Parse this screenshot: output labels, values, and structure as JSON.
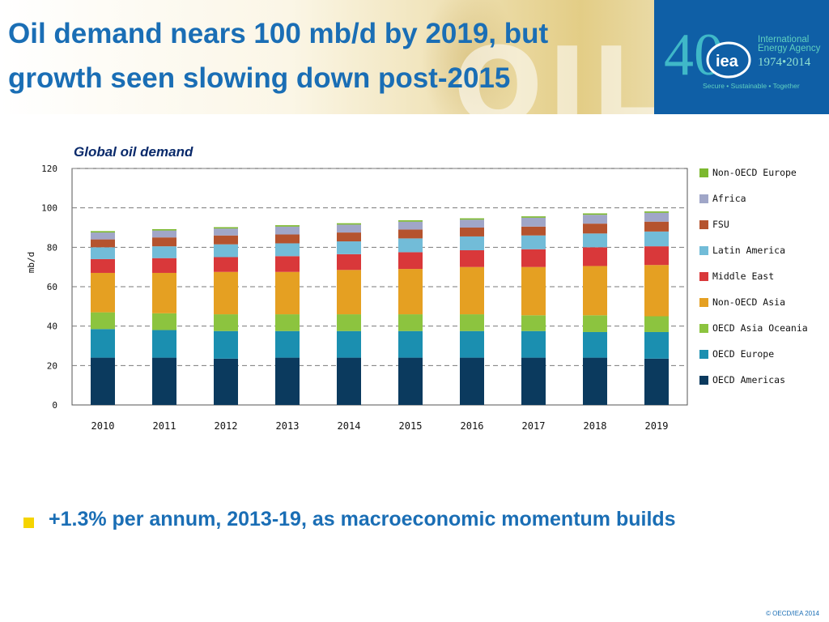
{
  "slide": {
    "title_line1": "Oil demand nears 100 mb/d by 2019, but",
    "title_line2": "growth seen slowing down post-2015",
    "bullet": "+1.3% per annum, 2013-19, as macroeconomic momentum builds",
    "copyright": "© OECD/IEA 2014",
    "bullet_color": "#f5d400",
    "accent_color": "#1a6eb5"
  },
  "logo": {
    "org_line1": "International",
    "org_line2": "Energy Agency",
    "years": "1974•2014",
    "tagline": "Secure • Sustainable • Together",
    "number": "40",
    "abbr": "iea"
  },
  "background_word": "OIL",
  "chart_data": {
    "type": "bar",
    "stacked": true,
    "title": "Global oil demand",
    "ylabel": "mb/d",
    "xlabel": "",
    "ylim": [
      0,
      120
    ],
    "yticks": [
      0,
      20,
      40,
      60,
      80,
      100,
      120
    ],
    "grid": true,
    "legend_position": "right",
    "categories": [
      "2010",
      "2011",
      "2012",
      "2013",
      "2014",
      "2015",
      "2016",
      "2017",
      "2018",
      "2019"
    ],
    "series": [
      {
        "name": "OECD Americas",
        "color": "#0b3a5e",
        "values": [
          24.0,
          24.0,
          23.5,
          24.0,
          24.0,
          24.0,
          24.0,
          24.0,
          24.0,
          23.5
        ]
      },
      {
        "name": "OECD Europe",
        "color": "#1b8fb0",
        "values": [
          14.5,
          14.0,
          14.0,
          13.5,
          13.5,
          13.5,
          13.5,
          13.5,
          13.0,
          13.5
        ]
      },
      {
        "name": "OECD Asia Oceania",
        "color": "#8cc43f",
        "values": [
          8.5,
          8.5,
          8.5,
          8.5,
          8.5,
          8.5,
          8.5,
          8.0,
          8.5,
          8.0
        ]
      },
      {
        "name": "Non-OECD Asia",
        "color": "#e5a022",
        "values": [
          20.0,
          20.5,
          21.5,
          21.5,
          22.5,
          23.0,
          24.0,
          24.5,
          25.0,
          26.0
        ]
      },
      {
        "name": "Middle East",
        "color": "#d9383a",
        "values": [
          7.0,
          7.5,
          7.5,
          8.0,
          8.0,
          8.5,
          8.5,
          9.0,
          9.5,
          9.5
        ]
      },
      {
        "name": "Latin America",
        "color": "#72bcd8",
        "values": [
          6.0,
          6.0,
          6.5,
          6.5,
          6.5,
          7.0,
          7.0,
          7.0,
          7.0,
          7.5
        ]
      },
      {
        "name": "FSU",
        "color": "#b5532e",
        "values": [
          4.0,
          4.5,
          4.5,
          4.5,
          4.5,
          4.5,
          4.5,
          4.5,
          5.0,
          5.0
        ]
      },
      {
        "name": "Africa",
        "color": "#a0a6c8",
        "values": [
          3.5,
          3.5,
          3.5,
          4.0,
          4.0,
          4.0,
          4.0,
          4.5,
          4.5,
          4.5
        ]
      },
      {
        "name": "Non-OECD Europe",
        "color": "#7cb82f",
        "values": [
          0.7,
          0.7,
          0.7,
          0.7,
          0.7,
          0.7,
          0.7,
          0.7,
          0.7,
          0.7
        ]
      }
    ]
  }
}
